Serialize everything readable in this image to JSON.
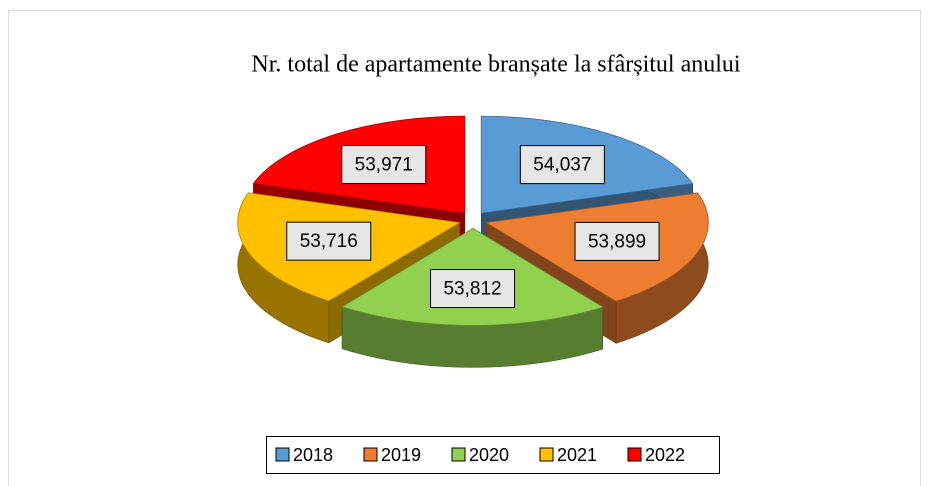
{
  "chart_data": {
    "type": "pie",
    "title": "Nr. total de apartamente branșate la sfârșitul anului",
    "categories": [
      "2018",
      "2019",
      "2020",
      "2021",
      "2022"
    ],
    "values": [
      54037,
      53899,
      53812,
      53716,
      53971
    ],
    "value_labels": [
      "54,037",
      "53,899",
      "53,812",
      "53,716",
      "53,971"
    ],
    "colors": [
      "#5b9bd5",
      "#ed7d31",
      "#92d050",
      "#ffc000",
      "#ff0000"
    ],
    "legend": "bottom"
  }
}
